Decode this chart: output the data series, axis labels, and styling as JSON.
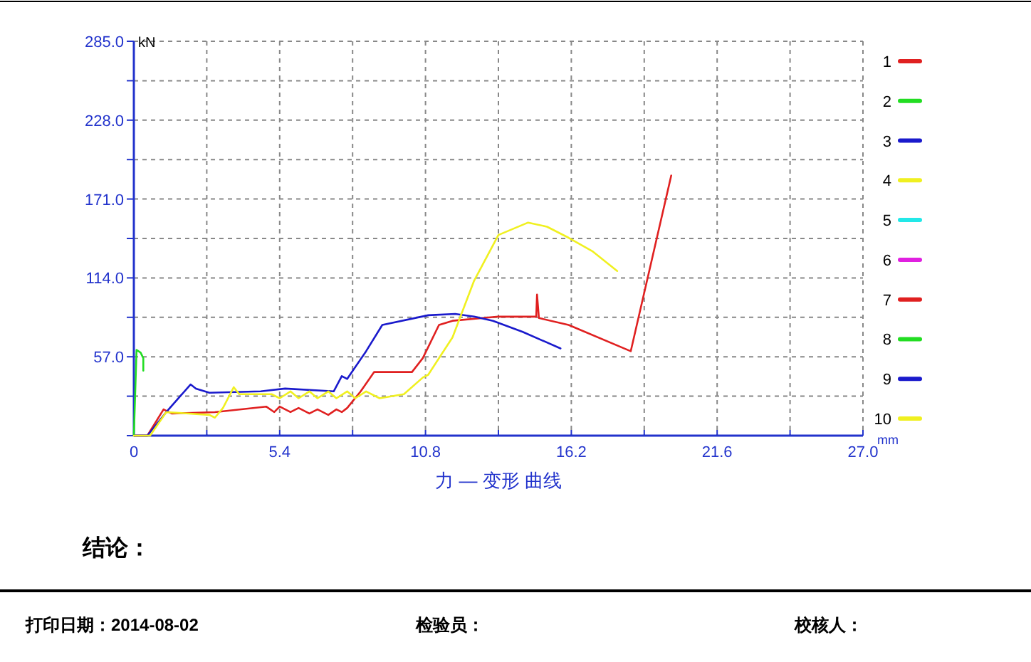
{
  "chart_data": {
    "type": "line",
    "title": "力 — 变形 曲线",
    "xlabel": "mm",
    "ylabel": "kN",
    "xlim": [
      0,
      27
    ],
    "ylim": [
      0,
      285
    ],
    "xticks": [
      0,
      {
        "value": 2.7,
        "label": null
      },
      5.4,
      {
        "value": 8.1,
        "label": null
      },
      10.8,
      {
        "value": 13.5,
        "label": null
      },
      16.2,
      {
        "value": 18.9,
        "label": null
      },
      21.6,
      {
        "value": 24.3,
        "label": null
      },
      {
        "value": 27,
        "label": "27.0"
      }
    ],
    "yticks": [
      {
        "value": 0,
        "label": null
      },
      {
        "value": 28.5,
        "label": null
      },
      {
        "value": 57,
        "label": "57.0"
      },
      {
        "value": 85.5,
        "label": null
      },
      {
        "value": 114,
        "label": "114.0"
      },
      {
        "value": 142.5,
        "label": null
      },
      {
        "value": 171,
        "label": "171.0"
      },
      {
        "value": 199.5,
        "label": null
      },
      {
        "value": 228,
        "label": "228.0"
      },
      {
        "value": 256.5,
        "label": null
      },
      {
        "value": 285,
        "label": "285.0"
      }
    ],
    "grid": true,
    "legend": "right",
    "line_style": "solid",
    "marker": "none",
    "series": [
      {
        "name": "1",
        "color": "#e02020",
        "x": [
          0,
          0.5,
          1.1,
          1.4,
          3.0,
          4.9,
          5.2,
          5.4,
          5.8,
          6.1,
          6.5,
          6.8,
          7.2,
          7.5,
          7.7,
          7.9,
          8.4,
          8.9,
          10.3,
          10.7,
          11.3,
          11.8,
          13.5,
          14.9,
          14.93,
          15.0,
          16.1,
          18.4,
          19.9
        ],
        "values": [
          0,
          0,
          19,
          16,
          17,
          21,
          17,
          21,
          17,
          20,
          16,
          19,
          15,
          19,
          17,
          20,
          32,
          46,
          46,
          56,
          80,
          83,
          86,
          86,
          102,
          85,
          80,
          61,
          188
        ]
      },
      {
        "name": "2",
        "color": "#22dd22",
        "x": [
          0,
          0.1,
          0.25,
          0.35,
          0.35
        ],
        "values": [
          0,
          62,
          60,
          56,
          47
        ]
      },
      {
        "name": "3",
        "color": "#1a1acc",
        "x": [
          0,
          0.5,
          1.2,
          2.1,
          2.3,
          2.8,
          4.7,
          5.6,
          7.4,
          7.7,
          7.9,
          8.6,
          9.2,
          10.9,
          11.9,
          12.6,
          13.3,
          14.4,
          15.8
        ],
        "values": [
          0,
          0,
          17,
          37,
          34,
          31,
          32,
          34,
          32,
          43,
          41,
          61,
          80,
          87,
          88,
          86,
          83,
          75,
          63
        ]
      },
      {
        "name": "4",
        "color": "#f0f020",
        "x": [
          0,
          0.6,
          1.2,
          2.8,
          3.0,
          3.3,
          3.7,
          3.9,
          5.1,
          5.4,
          5.8,
          6.1,
          6.5,
          6.8,
          7.2,
          7.5,
          7.9,
          8.2,
          8.6,
          9.1,
          10.0,
          10.7,
          10.9,
          11.8,
          12.6,
          13.5,
          14.6,
          15.3,
          16.1,
          17.0,
          17.9
        ],
        "values": [
          0,
          0,
          17,
          15,
          13,
          20,
          35,
          30,
          30,
          27,
          32,
          27,
          32,
          27,
          32,
          27,
          32,
          27,
          32,
          27,
          30,
          42,
          44,
          71,
          112,
          145,
          154,
          151,
          143,
          133,
          119
        ]
      },
      {
        "name": "5",
        "color": "#22e8e8"
      },
      {
        "name": "6",
        "color": "#e020e0"
      },
      {
        "name": "7",
        "color": "#e02020"
      },
      {
        "name": "8",
        "color": "#22dd22"
      },
      {
        "name": "9",
        "color": "#1a1acc"
      },
      {
        "name": "10",
        "color": "#f0f020"
      }
    ],
    "annotations": [
      "结论：",
      "打印日期：2014-08-02",
      "检验员：",
      "校核人："
    ]
  }
}
